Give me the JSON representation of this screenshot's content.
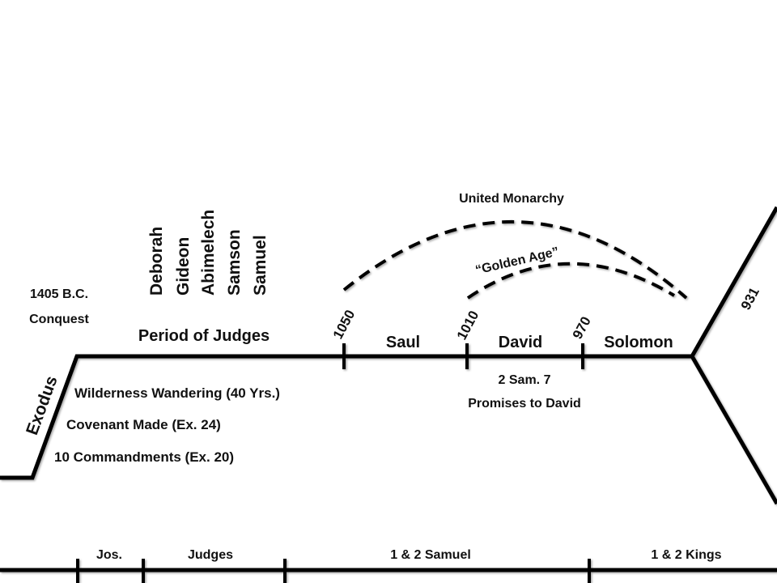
{
  "conquest": {
    "year": "1405 B.C.",
    "label": "Conquest"
  },
  "judges_names": [
    "Deborah",
    "Gideon",
    "Abimelech",
    "Samson",
    "Samuel"
  ],
  "period_of_judges": "Period of Judges",
  "exodus": "Exodus",
  "events": {
    "wilderness": "Wilderness Wandering (40 Yrs.)",
    "covenant": "Covenant Made (Ex. 24)",
    "commandments": "10 Commandments (Ex. 20)"
  },
  "united_monarchy": "United Monarchy",
  "golden_age": "“Golden Age”",
  "dates": {
    "d1050": "1050",
    "d1010": "1010",
    "d970": "970",
    "d931": "931"
  },
  "kings": {
    "saul": "Saul",
    "david": "David",
    "solomon": "Solomon"
  },
  "promise": {
    "ref": "2 Sam. 7",
    "text": "Promises to David"
  },
  "books": {
    "joshua": "Jos.",
    "judges": "Judges",
    "samuel": "1 & 2 Samuel",
    "kings": "1 & 2 Kings"
  }
}
